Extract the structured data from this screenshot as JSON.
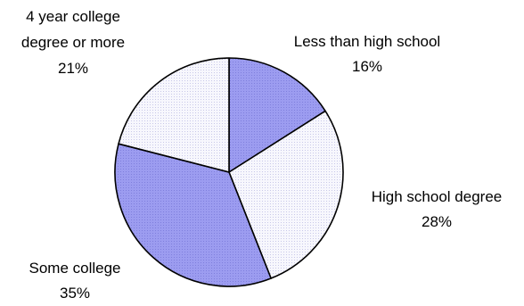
{
  "chart_data": {
    "type": "pie",
    "slices": [
      {
        "label": "Less than high school",
        "value": 16,
        "value_label": "16%",
        "fill": "#9c9cf0",
        "pattern": "dense-dots"
      },
      {
        "label": "High school degree",
        "value": 28,
        "value_label": "28%",
        "fill": "#f2f2fb",
        "pattern": "light-dots"
      },
      {
        "label": "Some college",
        "value": 35,
        "value_label": "35%",
        "fill": "#9c9cf0",
        "pattern": "dense-dots"
      },
      {
        "label": "4 year college degree or more",
        "label_lines": [
          "4 year college",
          "degree or more"
        ],
        "value": 21,
        "value_label": "21%",
        "fill": "#f2f2fb",
        "pattern": "light-dots"
      }
    ],
    "start_angle_deg": 0,
    "direction": "clockwise",
    "legend": "none"
  }
}
